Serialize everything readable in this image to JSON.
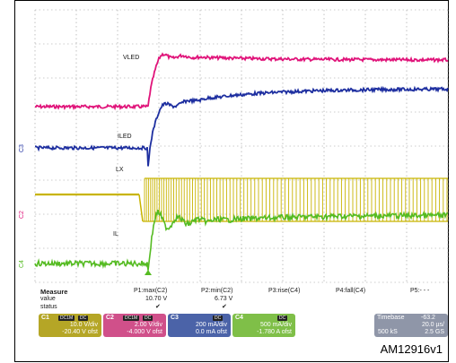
{
  "chart_data": {
    "type": "line",
    "title": "",
    "grid": true,
    "trace_labels": [
      "VLED",
      "ILED",
      "LX",
      "IL"
    ],
    "series": [
      {
        "name": "C1",
        "color": "#c8b400",
        "ground_marker": "C1"
      },
      {
        "name": "C2",
        "color": "#e0147a",
        "ground_marker": "C2"
      },
      {
        "name": "C3",
        "color": "#1e2fa0",
        "ground_marker": "C3"
      },
      {
        "name": "C4",
        "color": "#55bb22",
        "ground_marker": "C4"
      }
    ]
  },
  "measure": {
    "title": "Measure",
    "row_labels": [
      "value",
      "status"
    ],
    "cols": [
      {
        "label": "P1:max(C2)",
        "value": "10.70 V",
        "status": "✔"
      },
      {
        "label": "P2:min(C2)",
        "value": "6.73 V",
        "status": "✔"
      },
      {
        "label": "P3:rise(C4)",
        "value": "",
        "status": ""
      },
      {
        "label": "P4:fall(C4)",
        "value": "",
        "status": ""
      },
      {
        "label": "P5:- - -",
        "value": "",
        "status": ""
      }
    ]
  },
  "channels": [
    {
      "tag": "C1",
      "badges": [
        "DC1M",
        "DC"
      ],
      "line1": "10.0 V/div",
      "line2": "-20.40 V ofst",
      "color": "#b5a626"
    },
    {
      "tag": "C2",
      "badges": [
        "DC1M",
        "DC"
      ],
      "line1": "2.00 V/div",
      "line2": "-4.000 V ofst",
      "color": "#d0508a"
    },
    {
      "tag": "C3",
      "badges": [
        "DC"
      ],
      "line1": "200 mA/div",
      "line2": "0.0 mA ofst",
      "color": "#4b63a8"
    },
    {
      "tag": "C4",
      "badges": [
        "DC"
      ],
      "line1": "500 mA/div",
      "line2": "-1.780 A ofst",
      "color": "#7fbf48"
    }
  ],
  "timebase": {
    "label": "Timebase",
    "value": "-63.2",
    "line2a": "",
    "line2b": "20.0 µs/",
    "line3a": "500 kS",
    "line3b": "2.5 GS"
  },
  "figure_ref": "AM12916v1"
}
